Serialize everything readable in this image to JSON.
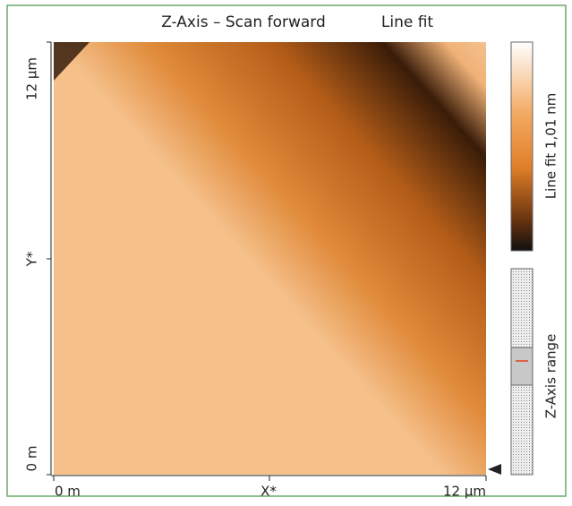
{
  "title": "Z-Axis – Scan forward",
  "subtitle": "Line fit",
  "image": {
    "x_axis": {
      "start": "0 m",
      "label": "X*",
      "end": "12 µm"
    },
    "y_axis": {
      "start": "0 m",
      "label": "Y*",
      "end": "12 µm"
    }
  },
  "colorbar": {
    "label": "Line fit 1,01 nm"
  },
  "range_bar": {
    "label": "Z-Axis range"
  }
}
